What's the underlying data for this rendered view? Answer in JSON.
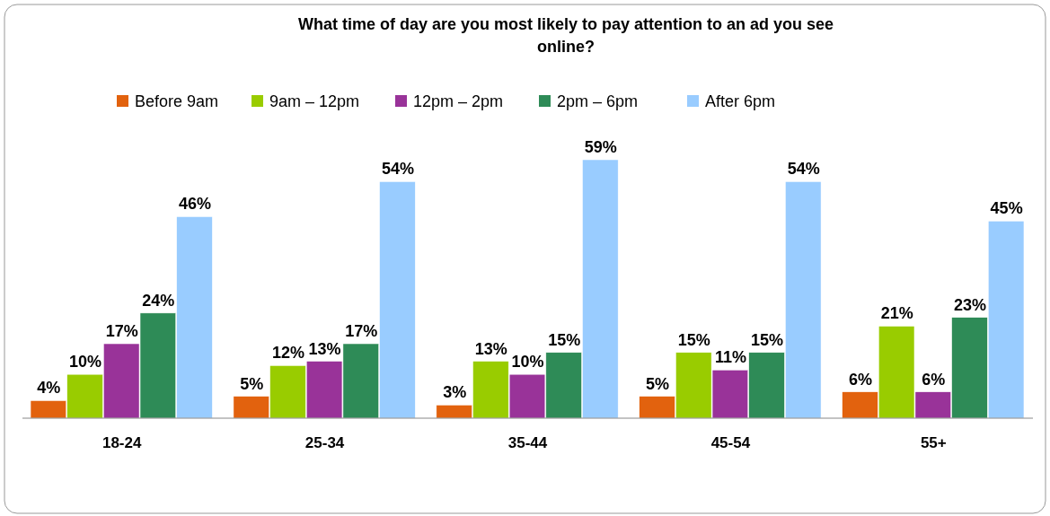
{
  "chart_data": {
    "type": "bar",
    "title": "What time of day are you most likely to pay attention to an ad you see online?",
    "categories": [
      "18-24",
      "25-34",
      "35-44",
      "45-54",
      "55+"
    ],
    "series": [
      {
        "name": "Before 9am",
        "color": "#e2620e",
        "values": [
          4,
          5,
          3,
          5,
          6
        ],
        "value_labels": [
          "4%",
          "5%",
          "3%",
          "5%",
          "6%"
        ]
      },
      {
        "name": "9am – 12pm",
        "color": "#99cc00",
        "values": [
          10,
          12,
          13,
          15,
          21
        ],
        "value_labels": [
          "10%",
          "12%",
          "13%",
          "15%",
          "21%"
        ]
      },
      {
        "name": "12pm – 2pm",
        "color": "#993399",
        "values": [
          17,
          13,
          10,
          11,
          6
        ],
        "value_labels": [
          "17%",
          "13%",
          "10%",
          "11%",
          "6%"
        ]
      },
      {
        "name": "2pm – 6pm",
        "color": "#2e8b57",
        "values": [
          24,
          17,
          15,
          15,
          23
        ],
        "value_labels": [
          "24%",
          "17%",
          "15%",
          "15%",
          "23%"
        ]
      },
      {
        "name": "After 6pm",
        "color": "#99ccff",
        "values": [
          46,
          54,
          59,
          54,
          45
        ],
        "value_labels": [
          "46%",
          "54%",
          "59%",
          "54%",
          "45%"
        ]
      }
    ],
    "legend": "top"
  }
}
